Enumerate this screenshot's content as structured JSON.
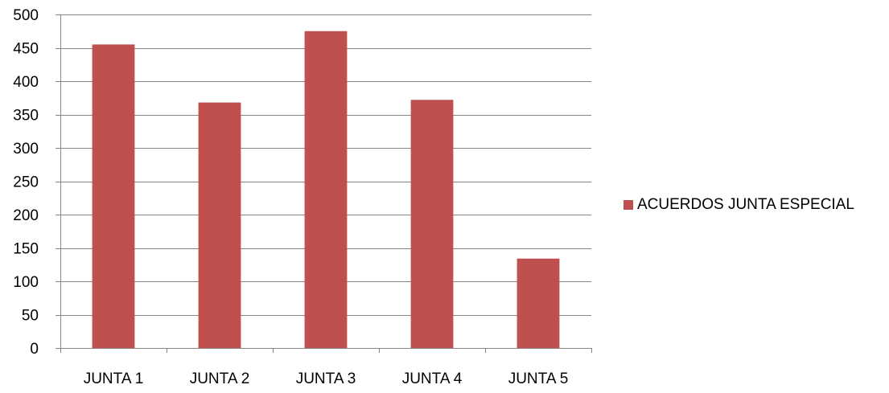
{
  "chart_data": {
    "type": "bar",
    "categories": [
      "JUNTA 1",
      "JUNTA 2",
      "JUNTA 3",
      "JUNTA 4",
      "JUNTA 5"
    ],
    "series": [
      {
        "name": "ACUERDOS JUNTA ESPECIAL",
        "values": [
          455,
          368,
          475,
          372,
          134
        ],
        "color": "#c0504d"
      }
    ],
    "title": "",
    "xlabel": "",
    "ylabel": "",
    "ylim": [
      0,
      500
    ],
    "yticks": [
      0,
      50,
      100,
      150,
      200,
      250,
      300,
      350,
      400,
      450,
      500
    ],
    "grid": true,
    "legend_position": "right"
  }
}
